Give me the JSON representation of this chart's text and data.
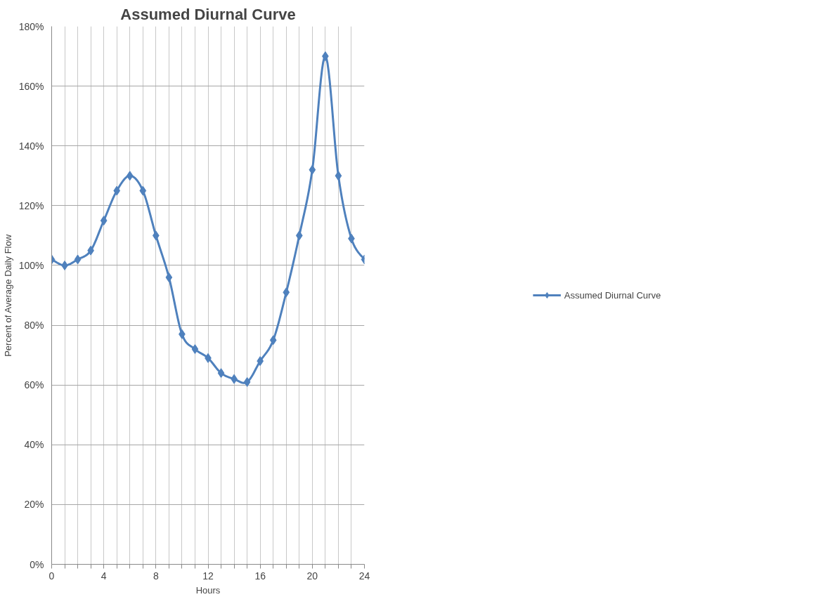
{
  "chart_data": {
    "type": "line",
    "title": "Assumed Diurnal Curve",
    "xlabel": "Hours",
    "ylabel": "Percent of Average Daily Flow",
    "x": [
      0,
      1,
      2,
      3,
      4,
      5,
      6,
      7,
      8,
      9,
      10,
      11,
      12,
      13,
      14,
      15,
      16,
      17,
      18,
      19,
      20,
      21,
      22,
      23,
      24
    ],
    "series": [
      {
        "name": "Assumed Diurnal Curve",
        "color": "#4f81bd",
        "values": [
          102,
          100,
          102,
          105,
          115,
          125,
          130,
          125,
          110,
          96,
          77,
          72,
          69,
          64,
          62,
          61,
          68,
          75,
          91,
          110,
          132,
          170,
          130,
          109,
          102
        ]
      }
    ],
    "xlim": [
      0,
      24
    ],
    "xticks": [
      0,
      {
        "value": 1,
        "label": null
      },
      {
        "value": 2,
        "label": null
      },
      {
        "value": 3,
        "label": null
      },
      4,
      {
        "value": 5,
        "label": null
      },
      {
        "value": 6,
        "label": null
      },
      {
        "value": 7,
        "label": null
      },
      8,
      {
        "value": 9,
        "label": null
      },
      {
        "value": 10,
        "label": null
      },
      {
        "value": 11,
        "label": null
      },
      12,
      {
        "value": 13,
        "label": null
      },
      {
        "value": 14,
        "label": null
      },
      {
        "value": 15,
        "label": null
      },
      16,
      {
        "value": 17,
        "label": null
      },
      {
        "value": 18,
        "label": null
      },
      {
        "value": 19,
        "label": null
      },
      20,
      {
        "value": 21,
        "label": null
      },
      {
        "value": 22,
        "label": null
      },
      {
        "value": 23,
        "label": null
      },
      24
    ],
    "ylim": [
      0,
      180
    ],
    "yticks": [
      {
        "value": 0,
        "label": "0%"
      },
      {
        "value": 20,
        "label": "20%"
      },
      {
        "value": 40,
        "label": "40%"
      },
      {
        "value": 60,
        "label": "60%"
      },
      {
        "value": 80,
        "label": "80%"
      },
      {
        "value": 100,
        "label": "100%"
      },
      {
        "value": 120,
        "label": "120%"
      },
      {
        "value": 140,
        "label": "140%"
      },
      {
        "value": 160,
        "label": "160%"
      },
      {
        "value": 180,
        "label": "180%"
      }
    ],
    "grid": true,
    "legend": "right",
    "marker": "diamond",
    "line_style": "solid"
  }
}
